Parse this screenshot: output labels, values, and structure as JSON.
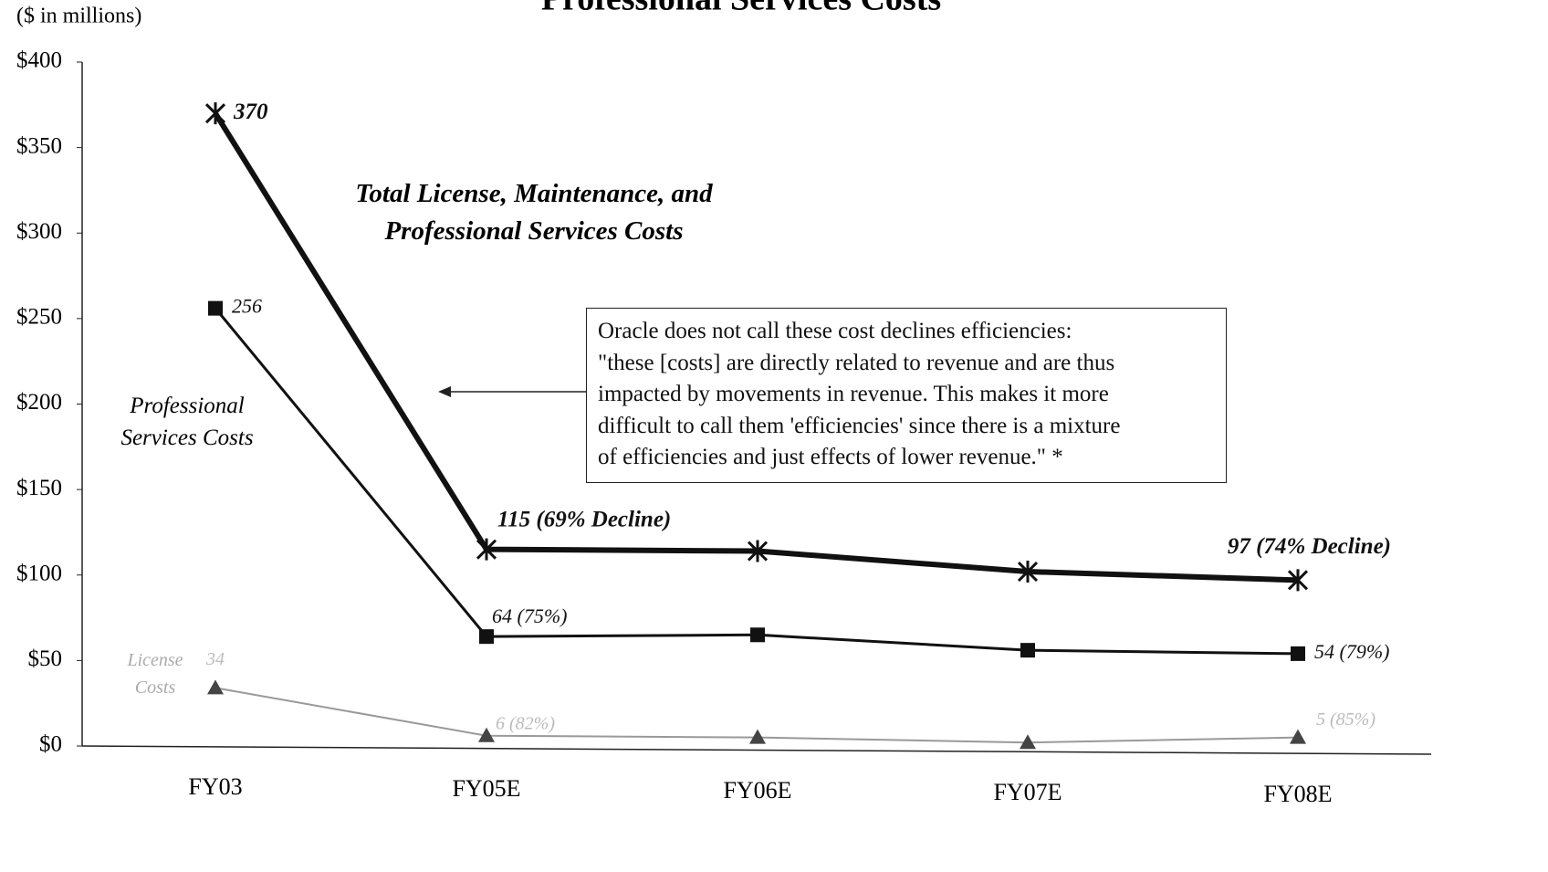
{
  "chart_data": {
    "type": "line",
    "title": "Professional Services Costs",
    "y_axis_label": "($ in millions)",
    "categories": [
      "FY03",
      "FY05E",
      "FY06E",
      "FY07E",
      "FY08E"
    ],
    "ylim": [
      0,
      400
    ],
    "yticks": [
      {
        "value": 0,
        "label": "$0"
      },
      {
        "value": 50,
        "label": "$50"
      },
      {
        "value": 100,
        "label": "$100"
      },
      {
        "value": 150,
        "label": "$150"
      },
      {
        "value": 200,
        "label": "$200"
      },
      {
        "value": 250,
        "label": "$250"
      },
      {
        "value": 300,
        "label": "$300"
      },
      {
        "value": 350,
        "label": "$350"
      },
      {
        "value": 400,
        "label": "$400"
      }
    ],
    "series": [
      {
        "name": "Total License, Maintenance, and Professional Services Costs",
        "color": "#111111",
        "marker": "star",
        "line_width": 6,
        "values": [
          370,
          115,
          114,
          102,
          97
        ],
        "value_labels": [
          "370",
          "115 (69% Decline)",
          null,
          null,
          "97 (74% Decline)"
        ]
      },
      {
        "name": "Professional Services Costs",
        "color": "#111111",
        "marker": "square",
        "line_width": 3,
        "values": [
          256,
          64,
          65,
          56,
          54
        ],
        "value_labels": [
          "256",
          "64 (75%)",
          null,
          null,
          "54 (79%)"
        ]
      },
      {
        "name": "License Costs",
        "color": "#999999",
        "marker": "triangle",
        "line_width": 2,
        "values": [
          34,
          6,
          5,
          2,
          5
        ],
        "value_labels": [
          "34",
          "6 (82%)",
          null,
          null,
          "5 (85%)"
        ]
      }
    ],
    "note_lines": [
      "Oracle does not call these cost declines efficiencies:",
      "\"these [costs] are directly related to revenue and are thus",
      "impacted by movements in revenue.  This makes it more",
      "difficult to call them 'efficiencies' since there is a mixture",
      "of efficiencies and just effects of lower revenue.\" *"
    ]
  }
}
